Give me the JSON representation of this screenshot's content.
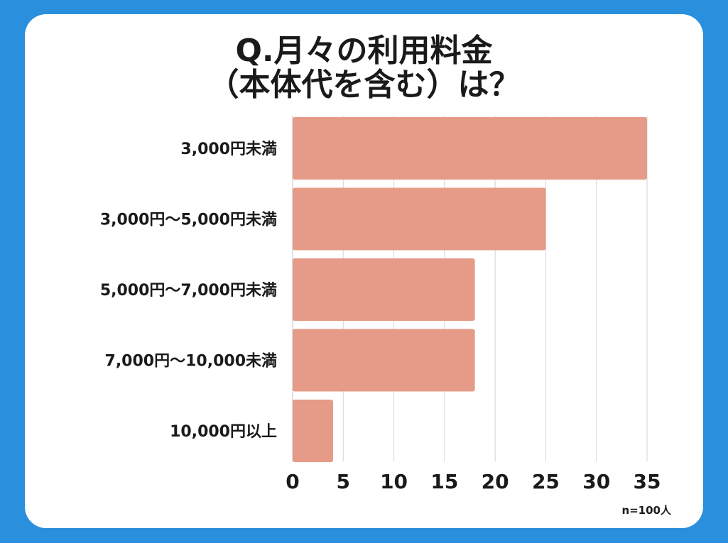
{
  "colors": {
    "background": "#2a8fdc",
    "card": "#ffffff",
    "bar": "#e59b87",
    "grid": "#d6d6d6",
    "text": "#1a1a1a"
  },
  "title_line1": "Q.月々の利用料金",
  "title_line2": "（本体代を含む）は？",
  "note": "n=100人",
  "chart_data": {
    "type": "bar",
    "orientation": "horizontal",
    "title": "Q.月々の利用料金（本体代を含む）は？",
    "categories": [
      "3,000円未満",
      "3,000円〜5,000円未満",
      "5,000円〜7,000円未満",
      "7,000円〜10,000未満",
      "10,000円以上"
    ],
    "values": [
      35,
      25,
      18,
      18,
      4
    ],
    "xlim": [
      0,
      35
    ],
    "xticks": [
      0,
      5,
      10,
      15,
      20,
      25,
      30,
      35
    ],
    "grid": true,
    "legend": "none"
  }
}
